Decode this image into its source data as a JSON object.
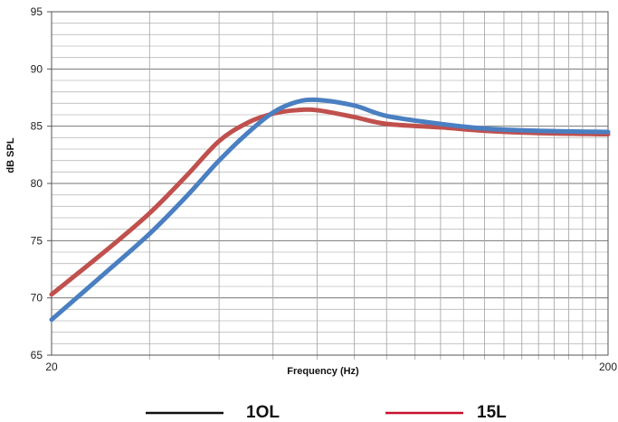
{
  "chart_data": {
    "type": "line",
    "xscale": "log",
    "xlim": [
      20,
      200
    ],
    "ylim": [
      65,
      95
    ],
    "xlabel": "Frequency (Hz)",
    "ylabel": "dB SPL",
    "xticks": [
      "20",
      "200"
    ],
    "yticks": [
      "65",
      "70",
      "75",
      "80",
      "85",
      "90",
      "95"
    ],
    "grid": true,
    "legend_position": "bottom",
    "series": [
      {
        "name": "1OL",
        "color": "#4a7fc1",
        "legend_color": "#111111",
        "x": [
          20,
          25,
          30,
          35,
          40,
          45,
          50,
          55,
          60,
          70,
          80,
          100,
          120,
          150,
          200
        ],
        "y": [
          68.1,
          72.2,
          75.6,
          78.9,
          82.0,
          84.4,
          86.2,
          87.1,
          87.3,
          86.8,
          85.9,
          85.2,
          84.8,
          84.6,
          84.5
        ]
      },
      {
        "name": "15L",
        "color": "#c0504d",
        "legend_color": "#c8102e",
        "x": [
          20,
          25,
          30,
          35,
          40,
          45,
          50,
          55,
          60,
          70,
          80,
          100,
          120,
          150,
          200
        ],
        "y": [
          70.3,
          74.1,
          77.4,
          80.7,
          83.7,
          85.3,
          86.1,
          86.4,
          86.4,
          85.8,
          85.2,
          84.9,
          84.6,
          84.4,
          84.3
        ]
      }
    ]
  }
}
